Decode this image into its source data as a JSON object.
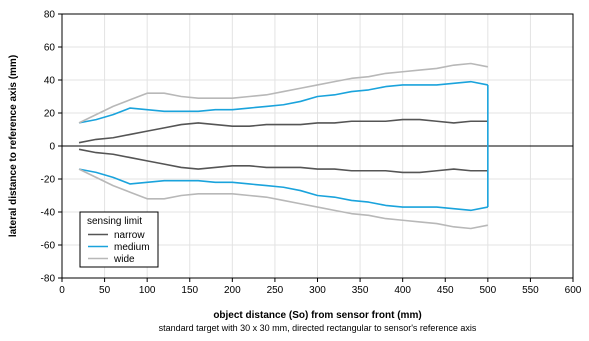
{
  "chart_data": {
    "type": "line",
    "xlabel": "object distance (So) from sensor front (mm)",
    "subtitle": "standard target with 30 x 30 mm, directed rectangular to sensor's reference axis",
    "ylabel": "lateral distance to reference axis (mm)",
    "xlim": [
      0,
      600
    ],
    "ylim": [
      -80,
      80
    ],
    "xticks": [
      0,
      50,
      100,
      150,
      200,
      250,
      300,
      350,
      400,
      450,
      500,
      550,
      600
    ],
    "yticks": [
      -80,
      -60,
      -40,
      -20,
      0,
      20,
      40,
      60,
      80
    ],
    "grid": true,
    "legend": {
      "title": "sensing limit",
      "position": "lower-left"
    },
    "series": [
      {
        "name": "narrow",
        "color": "#555555",
        "x": [
          20,
          40,
          60,
          80,
          100,
          120,
          140,
          160,
          180,
          200,
          220,
          240,
          260,
          280,
          300,
          320,
          340,
          360,
          380,
          400,
          420,
          440,
          460,
          480,
          500
        ],
        "upper": [
          2,
          4,
          5,
          7,
          9,
          11,
          13,
          14,
          13,
          12,
          12,
          13,
          13,
          13,
          14,
          14,
          15,
          15,
          15,
          16,
          16,
          15,
          14,
          15,
          15
        ],
        "lower": [
          -2,
          -4,
          -5,
          -7,
          -9,
          -11,
          -13,
          -14,
          -13,
          -12,
          -12,
          -13,
          -13,
          -13,
          -14,
          -14,
          -15,
          -15,
          -15,
          -16,
          -16,
          -15,
          -14,
          -15,
          -15
        ]
      },
      {
        "name": "medium",
        "color": "#1aa3dc",
        "x": [
          20,
          40,
          60,
          80,
          100,
          120,
          140,
          160,
          180,
          200,
          220,
          240,
          260,
          280,
          300,
          320,
          340,
          360,
          380,
          400,
          420,
          440,
          460,
          480,
          500
        ],
        "upper": [
          14,
          16,
          19,
          23,
          22,
          21,
          21,
          21,
          22,
          22,
          23,
          24,
          25,
          27,
          30,
          31,
          33,
          34,
          36,
          37,
          37,
          37,
          38,
          39,
          37
        ],
        "lower": [
          -14,
          -16,
          -19,
          -23,
          -22,
          -21,
          -21,
          -21,
          -22,
          -22,
          -23,
          -24,
          -25,
          -27,
          -30,
          -31,
          -33,
          -34,
          -36,
          -37,
          -37,
          -37,
          -38,
          -39,
          -37
        ],
        "closed_at": 500
      },
      {
        "name": "wide",
        "color": "#b8b8b8",
        "x": [
          20,
          40,
          60,
          80,
          100,
          120,
          140,
          160,
          180,
          200,
          220,
          240,
          260,
          280,
          300,
          320,
          340,
          360,
          380,
          400,
          420,
          440,
          460,
          480,
          500
        ],
        "upper": [
          14,
          19,
          24,
          28,
          32,
          32,
          30,
          29,
          29,
          29,
          30,
          31,
          33,
          35,
          37,
          39,
          41,
          42,
          44,
          45,
          46,
          47,
          49,
          50,
          48
        ],
        "lower": [
          -14,
          -19,
          -24,
          -28,
          -32,
          -32,
          -30,
          -29,
          -29,
          -29,
          -30,
          -31,
          -33,
          -35,
          -37,
          -39,
          -41,
          -42,
          -44,
          -45,
          -46,
          -47,
          -49,
          -50,
          -48
        ]
      }
    ]
  }
}
